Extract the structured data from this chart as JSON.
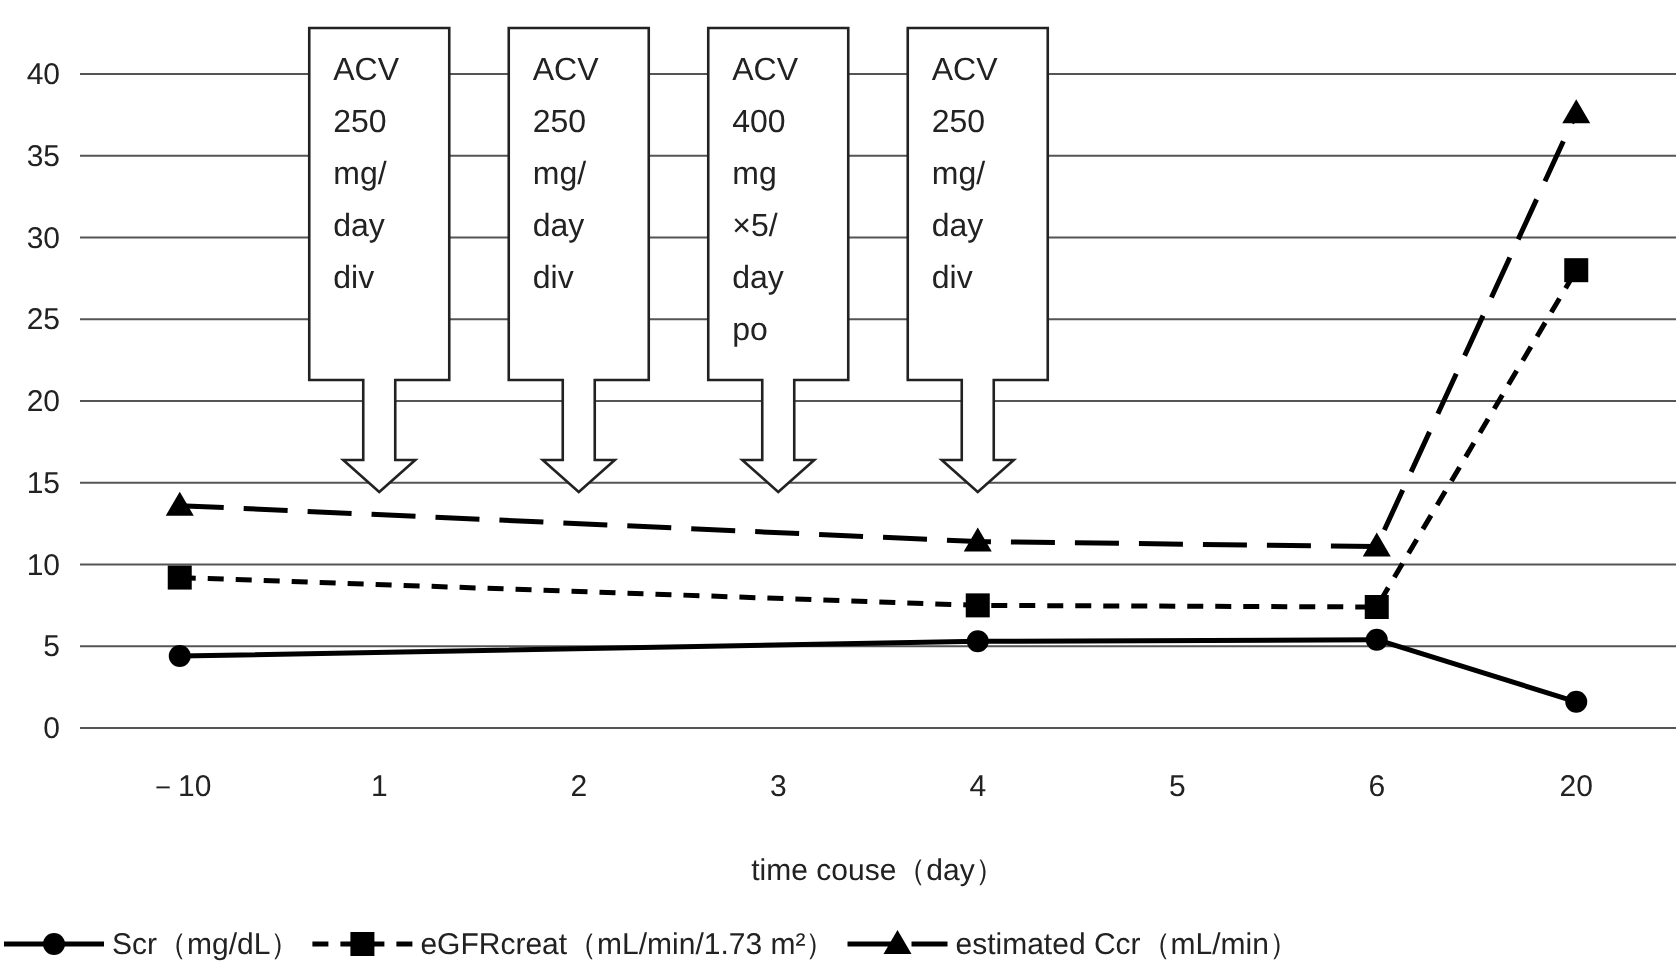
{
  "chart_data": {
    "type": "line",
    "xlabel": "time couse（day）",
    "categories": [
      "－10",
      "1",
      "2",
      "3",
      "4",
      "5",
      "6",
      "20"
    ],
    "ylim": [
      0,
      40
    ],
    "yticks": [
      0,
      5,
      10,
      15,
      20,
      25,
      30,
      35,
      40
    ],
    "grid": "y",
    "legend": "bottom",
    "series": [
      {
        "name": "Scr（mg/dL）",
        "color": "#000000",
        "marker": "circle",
        "line_style": "solid",
        "values": [
          4.4,
          null,
          null,
          null,
          5.3,
          null,
          5.4,
          1.6
        ]
      },
      {
        "name": "eGFRcreat（mL/min/1.73 m²）",
        "color": "#000000",
        "marker": "square",
        "line_style": "dashed",
        "values": [
          9.2,
          null,
          null,
          null,
          7.5,
          null,
          7.4,
          28
        ]
      },
      {
        "name": "estimated Ccr（mL/min）",
        "color": "#000000",
        "marker": "triangle",
        "line_style": "dashed",
        "values": [
          13.6,
          null,
          null,
          null,
          11.4,
          null,
          11.1,
          37.6
        ]
      }
    ],
    "annotations": [
      "ACV\n250\nmg/\nday\ndiv",
      "ACV\n250\nmg/\nday\ndiv",
      "ACV\n400\nmg\n×5/\nday\npo",
      "ACV\n250\nmg/\nday\ndiv"
    ]
  }
}
